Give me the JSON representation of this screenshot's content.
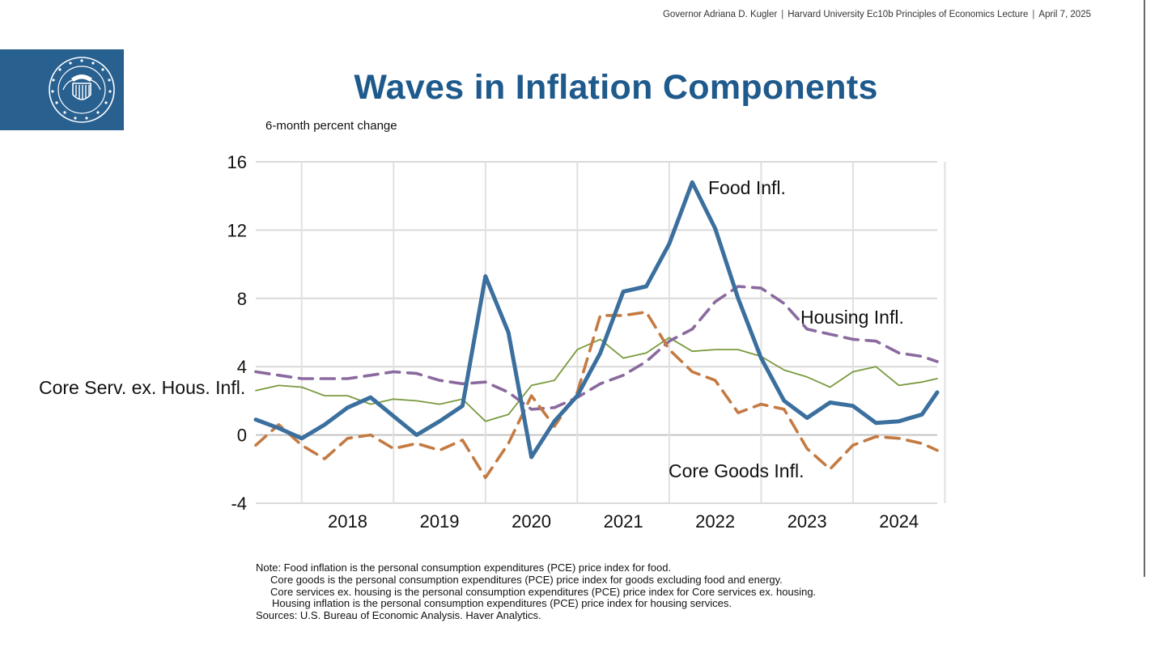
{
  "header": {
    "speaker": "Governor Adriana D. Kugler",
    "event": "Harvard University Ec10b Principles of Economics Lecture",
    "date": "April 7, 2025",
    "separator": "|"
  },
  "logo": {
    "icon": "federal-reserve-seal",
    "color": "#286090"
  },
  "title": "Waves in Inflation Components",
  "subtitle": "6-month percent change",
  "chart_data": {
    "type": "line",
    "x_start": "2017-07",
    "x_end": "2024-12",
    "x_frequency": "monthly",
    "ylim": [
      -4,
      16
    ],
    "yticks": [
      "16",
      "12",
      "8",
      "4",
      "0",
      "-4"
    ],
    "xticks": [
      "2018",
      "2019",
      "2020",
      "2021",
      "2022",
      "2023",
      "2024"
    ],
    "grid": true,
    "series": [
      {
        "name": "Core Serv. ex. Hous. Infl.",
        "color": "#7a9a3e",
        "style": "thin-solid",
        "x": [
          "2017-07",
          "2017-10",
          "2018-01",
          "2018-04",
          "2018-07",
          "2018-10",
          "2019-01",
          "2019-04",
          "2019-07",
          "2019-10",
          "2020-01",
          "2020-04",
          "2020-07",
          "2020-10",
          "2021-01",
          "2021-04",
          "2021-07",
          "2021-10",
          "2022-01",
          "2022-04",
          "2022-07",
          "2022-10",
          "2023-01",
          "2023-04",
          "2023-07",
          "2023-10",
          "2024-01",
          "2024-04",
          "2024-07",
          "2024-10",
          "2024-12"
        ],
        "values": [
          2.6,
          2.9,
          2.8,
          2.3,
          2.3,
          1.8,
          2.1,
          2.0,
          1.8,
          2.1,
          0.8,
          1.2,
          2.9,
          3.2,
          5.0,
          5.6,
          4.5,
          4.8,
          5.7,
          4.9,
          5.0,
          5.0,
          4.6,
          3.8,
          3.4,
          2.8,
          3.7,
          4.0,
          2.9,
          3.1,
          3.3
        ]
      },
      {
        "name": "Housing Infl.",
        "color": "#8a6a9e",
        "style": "dashed",
        "x": [
          "2017-07",
          "2017-10",
          "2018-01",
          "2018-04",
          "2018-07",
          "2018-10",
          "2019-01",
          "2019-04",
          "2019-07",
          "2019-10",
          "2020-01",
          "2020-04",
          "2020-07",
          "2020-10",
          "2021-01",
          "2021-04",
          "2021-07",
          "2021-10",
          "2022-01",
          "2022-04",
          "2022-07",
          "2022-10",
          "2023-01",
          "2023-04",
          "2023-07",
          "2023-10",
          "2024-01",
          "2024-04",
          "2024-07",
          "2024-10",
          "2024-12"
        ],
        "values": [
          3.7,
          3.5,
          3.3,
          3.3,
          3.3,
          3.5,
          3.7,
          3.6,
          3.2,
          3.0,
          3.1,
          2.5,
          1.5,
          1.6,
          2.2,
          3.0,
          3.5,
          4.3,
          5.5,
          6.2,
          7.8,
          8.7,
          8.6,
          7.7,
          6.2,
          5.9,
          5.6,
          5.5,
          4.8,
          4.6,
          4.3
        ]
      },
      {
        "name": "Core Goods Infl.",
        "color": "#c47a42",
        "style": "dashed",
        "x": [
          "2017-07",
          "2017-10",
          "2018-01",
          "2018-04",
          "2018-07",
          "2018-10",
          "2019-01",
          "2019-04",
          "2019-07",
          "2019-10",
          "2020-01",
          "2020-04",
          "2020-07",
          "2020-10",
          "2021-01",
          "2021-04",
          "2021-07",
          "2021-10",
          "2022-01",
          "2022-04",
          "2022-07",
          "2022-10",
          "2023-01",
          "2023-04",
          "2023-07",
          "2023-10",
          "2024-01",
          "2024-04",
          "2024-07",
          "2024-10",
          "2024-12"
        ],
        "values": [
          -0.6,
          0.6,
          -0.6,
          -1.4,
          -0.2,
          0.0,
          -0.8,
          -0.5,
          -0.9,
          -0.3,
          -2.5,
          -0.5,
          2.3,
          0.5,
          2.5,
          7.0,
          7.0,
          7.2,
          5.0,
          3.7,
          3.2,
          1.3,
          1.8,
          1.5,
          -0.8,
          -2.0,
          -0.6,
          -0.1,
          -0.2,
          -0.5,
          -0.9
        ]
      },
      {
        "name": "Food Infl.",
        "color": "#3a6f9e",
        "style": "thick-solid",
        "x": [
          "2017-07",
          "2017-10",
          "2018-01",
          "2018-04",
          "2018-07",
          "2018-10",
          "2019-01",
          "2019-04",
          "2019-07",
          "2019-10",
          "2020-01",
          "2020-04",
          "2020-07",
          "2020-10",
          "2021-01",
          "2021-04",
          "2021-07",
          "2021-10",
          "2022-01",
          "2022-04",
          "2022-07",
          "2022-10",
          "2023-01",
          "2023-04",
          "2023-07",
          "2023-10",
          "2024-01",
          "2024-04",
          "2024-07",
          "2024-10",
          "2024-12"
        ],
        "values": [
          0.9,
          0.4,
          -0.2,
          0.6,
          1.6,
          2.2,
          1.1,
          0.0,
          0.8,
          1.7,
          9.3,
          6.0,
          -1.3,
          0.8,
          2.3,
          4.8,
          8.4,
          8.7,
          11.2,
          14.8,
          12.1,
          8.0,
          4.5,
          2.0,
          1.0,
          1.9,
          1.7,
          0.7,
          0.8,
          1.2,
          2.5
        ]
      }
    ]
  },
  "notes": {
    "line1": "Note: Food inflation is the personal consumption expenditures (PCE) price index for food.",
    "line2": "Core goods is the personal consumption expenditures (PCE) price index for goods excluding food and energy.",
    "line3": "Core services ex. housing is the personal consumption expenditures (PCE) price index for Core services ex. housing.",
    "line4": "Housing inflation is the personal consumption expenditures (PCE) price index for housing services.",
    "sources": "Sources: U.S. Bureau of Economic Analysis. Haver Analytics."
  }
}
